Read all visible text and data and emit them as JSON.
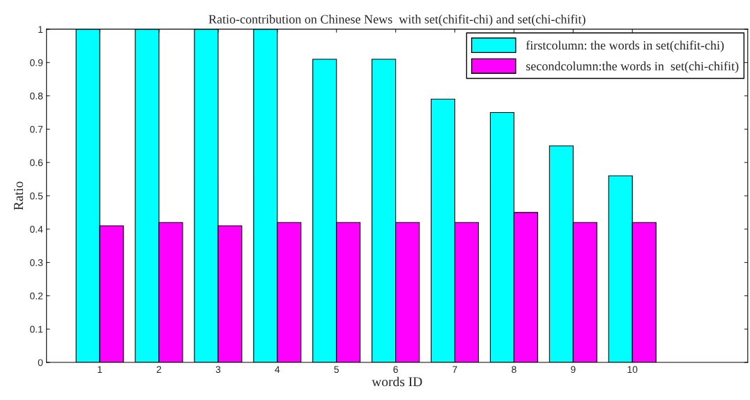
{
  "chart_data": {
    "type": "bar",
    "title": "Ratio-contribution on Chinese News  with set(chifit-chi) and set(chi-chifit)",
    "xlabel": "words ID",
    "ylabel": "Ratio",
    "x": [
      1,
      2,
      3,
      4,
      5,
      6,
      7,
      8,
      9,
      10
    ],
    "xlim": [
      0.1,
      11.95
    ],
    "xticks": [
      1,
      2,
      3,
      4,
      5,
      6,
      7,
      8,
      9,
      10
    ],
    "ylim": [
      0,
      1
    ],
    "yticks": [
      0,
      0.1,
      0.2,
      0.3,
      0.4,
      0.5,
      0.6,
      0.7,
      0.8,
      0.9,
      1
    ],
    "series": [
      {
        "name": "firstcolumn: the words in set(chifit-chi)",
        "color": "#00ffff",
        "values": [
          1,
          1,
          1,
          1,
          0.91,
          0.91,
          0.79,
          0.75,
          0.65,
          0.56
        ]
      },
      {
        "name": "secondcolumn:the words in  set(chi-chifit)",
        "color": "#ff00ff",
        "values": [
          0.41,
          0.42,
          0.41,
          0.42,
          0.42,
          0.42,
          0.42,
          0.45,
          0.42,
          0.42
        ]
      }
    ],
    "grid": false,
    "legend": "top right"
  }
}
